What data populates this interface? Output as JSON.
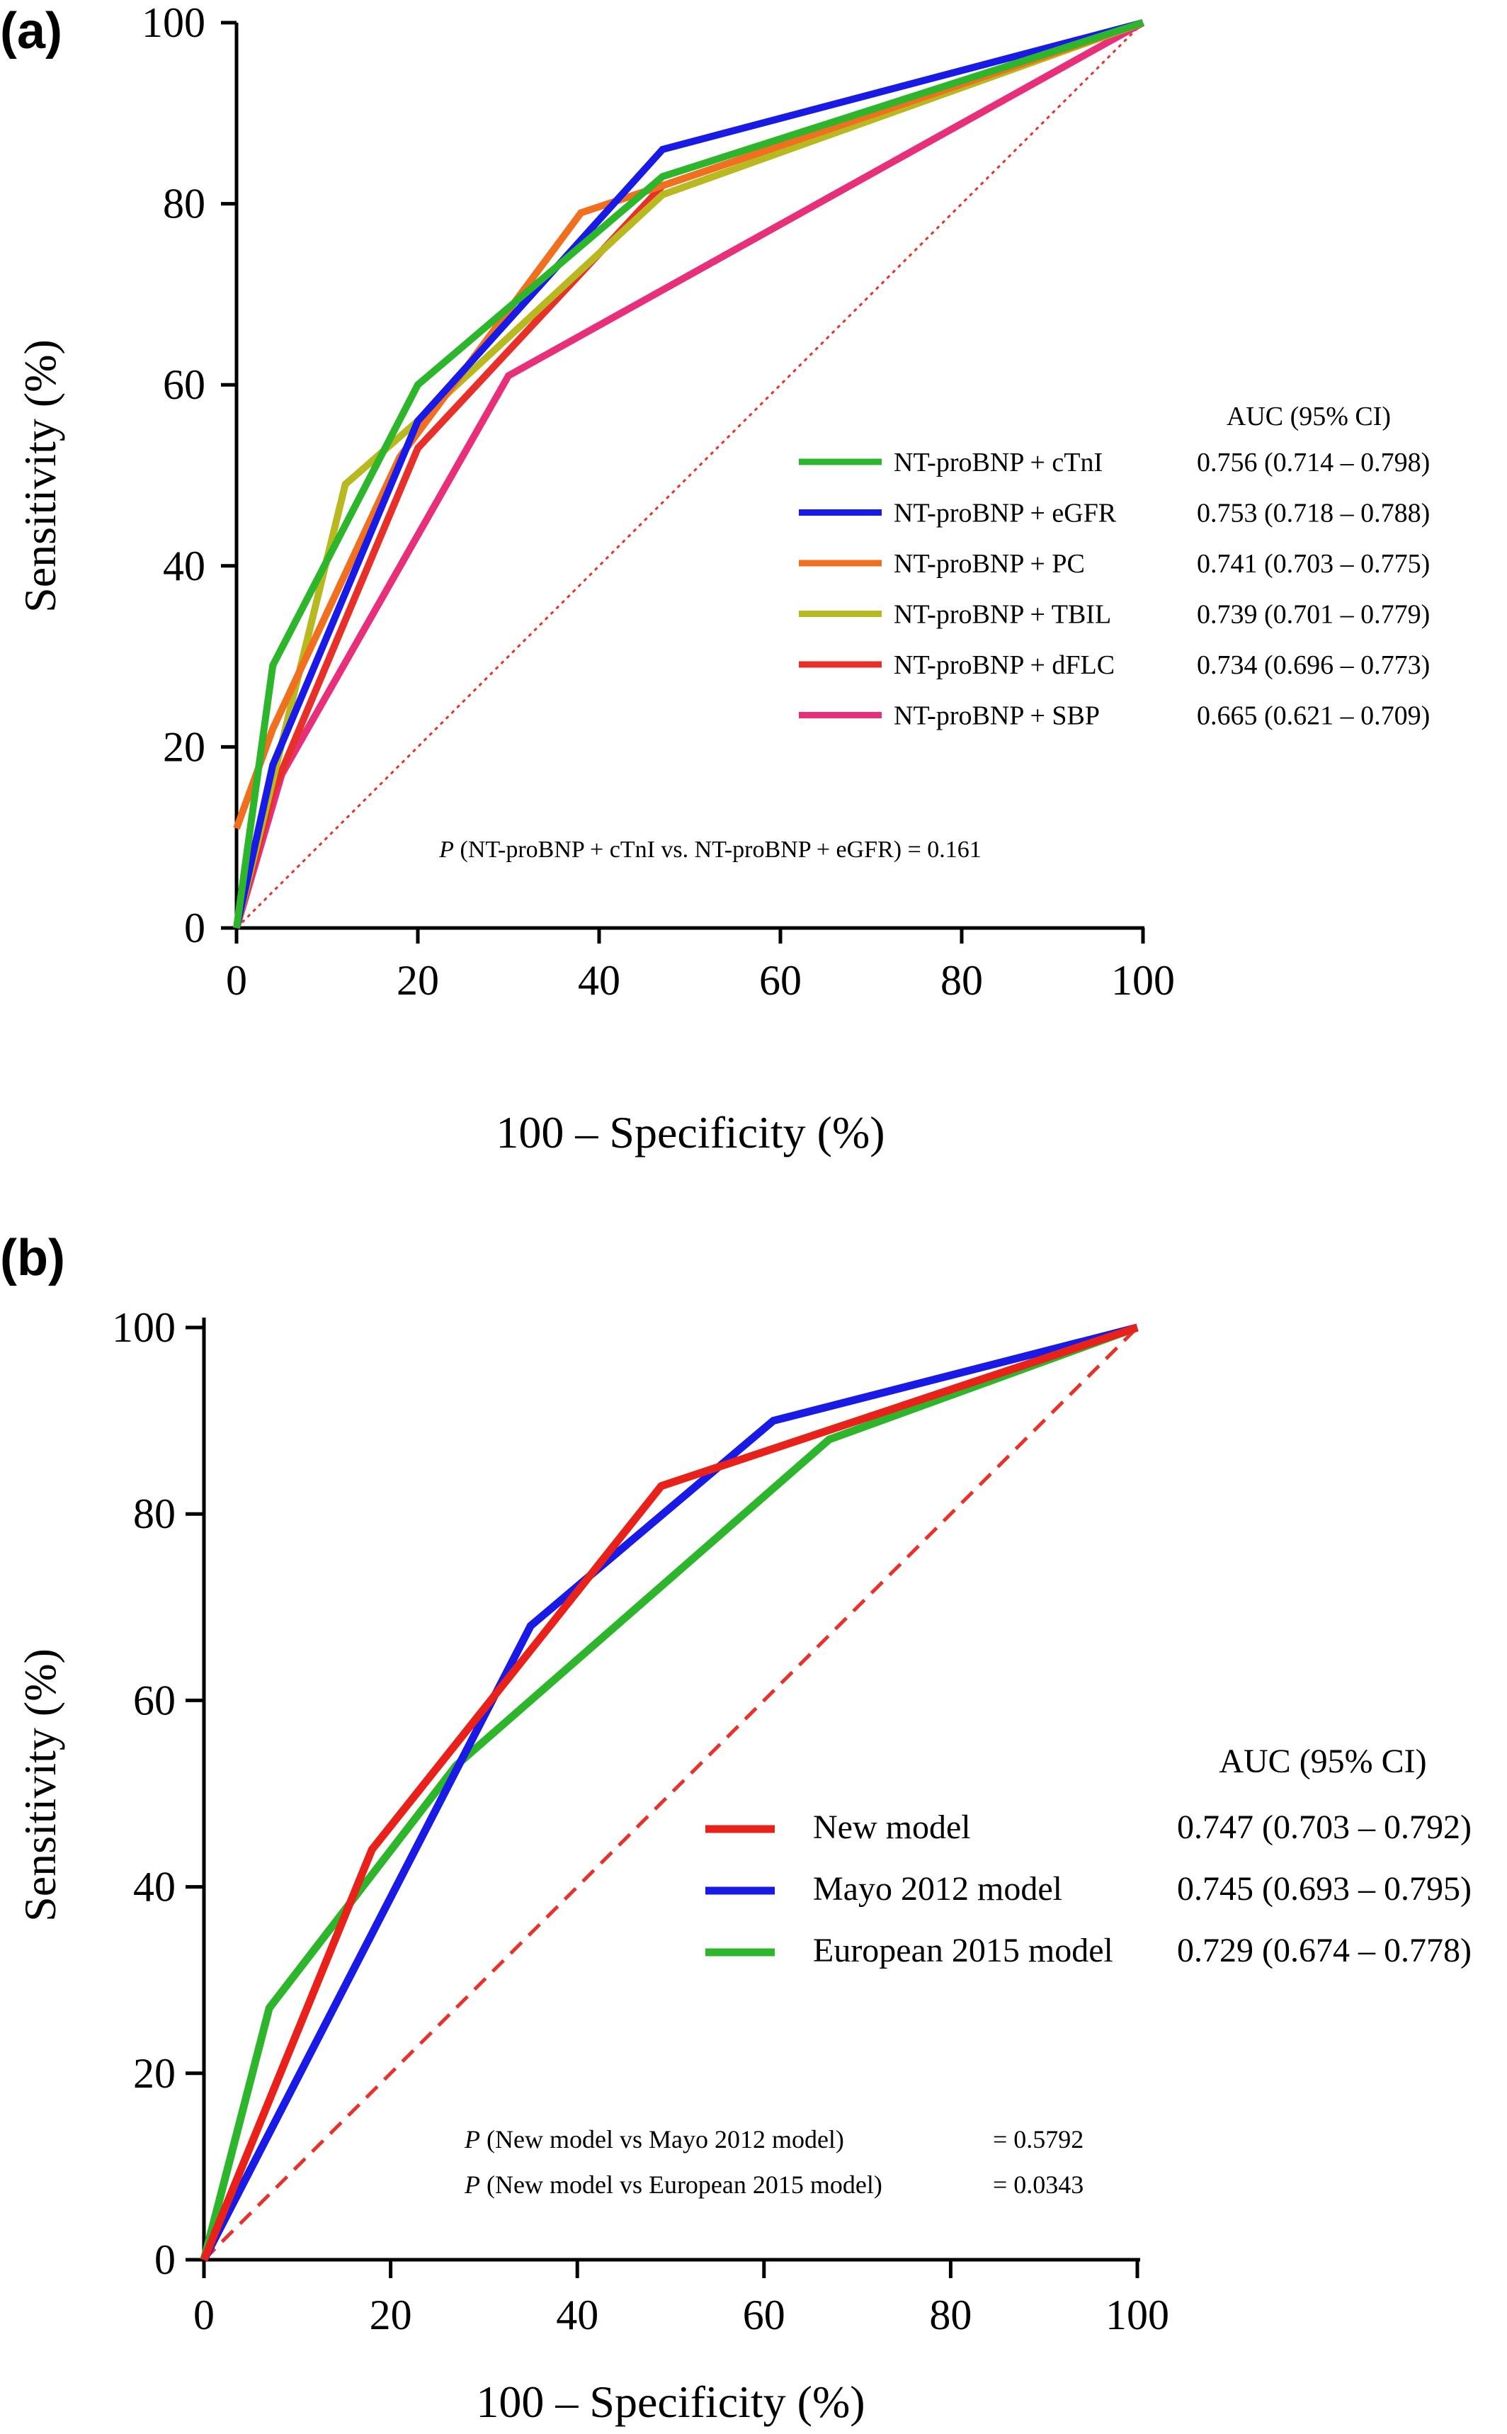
{
  "chart_data": [
    {
      "type": "line",
      "panel_label": "(a)",
      "xlabel": "100 – Specificity (%)",
      "ylabel": "Sensitivity (%)",
      "xlim": [
        0,
        100
      ],
      "ylim": [
        0,
        100
      ],
      "xticks": [
        "0",
        "20",
        "40",
        "60",
        "80",
        "100"
      ],
      "yticks": [
        "0",
        "20",
        "40",
        "60",
        "80",
        "100"
      ],
      "grid": false,
      "legend_position": "right",
      "legend_header": "AUC (95% CI)",
      "reference_line": {
        "from": [
          0,
          0
        ],
        "to": [
          100,
          100
        ],
        "style": "dotted",
        "color": "#e8312a"
      },
      "series": [
        {
          "name": "NT-proBNP + cTnI",
          "auc": "0.756 (0.714 – 0.798)",
          "color": "#2db52b",
          "x": [
            0,
            4,
            20,
            47,
            100
          ],
          "y": [
            0,
            29,
            60,
            83,
            100
          ]
        },
        {
          "name": "NT-proBNP + eGFR",
          "auc": "0.753 (0.718 – 0.788)",
          "color": "#1a1ae6",
          "x": [
            0,
            4,
            20,
            47,
            100
          ],
          "y": [
            0,
            18,
            56,
            86,
            100
          ]
        },
        {
          "name": "NT-proBNP + PC",
          "auc": "0.741 (0.703 – 0.775)",
          "color": "#f07020",
          "x": [
            0,
            4,
            18,
            38,
            47,
            100
          ],
          "y": [
            11,
            22,
            52,
            79,
            82,
            100
          ]
        },
        {
          "name": "NT-proBNP + TBIL",
          "auc": "0.739 (0.701 – 0.779)",
          "color": "#b8b820",
          "x": [
            0,
            12,
            20,
            47,
            100
          ],
          "y": [
            0,
            49,
            56,
            81,
            100
          ]
        },
        {
          "name": "NT-proBNP + dFLC",
          "auc": "0.734 (0.696 – 0.773)",
          "color": "#e8302a",
          "x": [
            0,
            4,
            20,
            47,
            100
          ],
          "y": [
            0,
            15,
            53,
            82,
            100
          ]
        },
        {
          "name": "NT-proBNP + SBP",
          "auc": "0.665 (0.621 – 0.709)",
          "color": "#e8307a",
          "x": [
            0,
            5,
            30,
            100
          ],
          "y": [
            0,
            17,
            61,
            100
          ]
        }
      ],
      "annotations": [
        {
          "italic": "P",
          "text": " (NT-proBNP + cTnI vs. NT-proBNP + eGFR) = 0.161"
        }
      ]
    },
    {
      "type": "line",
      "panel_label": "(b)",
      "xlabel": "100 – Specificity (%)",
      "ylabel": "Sensitivity (%)",
      "xlim": [
        0,
        100
      ],
      "ylim": [
        0,
        100
      ],
      "xticks": [
        "0",
        "20",
        "40",
        "60",
        "80",
        "100"
      ],
      "yticks": [
        "0",
        "20",
        "40",
        "60",
        "80",
        "100"
      ],
      "grid": false,
      "legend_position": "right",
      "legend_header": "AUC (95% CI)",
      "reference_line": {
        "from": [
          0,
          0
        ],
        "to": [
          100,
          100
        ],
        "style": "dashed",
        "color": "#e8312a"
      },
      "series": [
        {
          "name": "New model",
          "auc": "0.747 (0.703 – 0.792)",
          "color": "#e8221a",
          "x": [
            0,
            18,
            49,
            100
          ],
          "y": [
            0,
            44,
            83,
            100
          ]
        },
        {
          "name": "Mayo 2012 model",
          "auc": "0.745 (0.693 – 0.795)",
          "color": "#1a1ae6",
          "x": [
            0,
            35,
            61,
            100
          ],
          "y": [
            0,
            68,
            90,
            100
          ]
        },
        {
          "name": "European 2015 model",
          "auc": "0.729 (0.674 – 0.778)",
          "color": "#2db52b",
          "x": [
            0,
            7,
            27,
            67,
            100
          ],
          "y": [
            0,
            27,
            53,
            88,
            100
          ]
        }
      ],
      "annotations": [
        {
          "italic": "P",
          "text": " (New model vs Mayo 2012 model)",
          "value": "= 0.5792"
        },
        {
          "italic": "P",
          "text": " (New model vs European 2015 model)",
          "value": "= 0.0343"
        }
      ]
    }
  ]
}
